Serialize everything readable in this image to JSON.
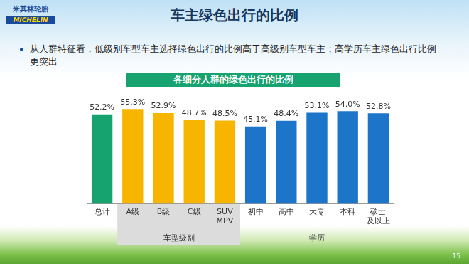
{
  "slide": {
    "title": "车主绿色出行的比例",
    "logo": [
      "米其林轮胎",
      "MICHELIN"
    ],
    "bullet": "从人群特征看，低级别车型车主选择绿色出行的比例高于高级别车型车主；高学历车主绿色出行比例更突出",
    "page": "15"
  },
  "chart_data": {
    "type": "bar",
    "title": "各细分人群的绿色出行的比例",
    "categories": [
      "总计",
      "A级",
      "B级",
      "C级",
      "SUV\nMPV",
      "初中",
      "高中",
      "大专",
      "本科",
      "硕士\n及以上"
    ],
    "values": [
      52.2,
      55.3,
      52.9,
      48.7,
      48.5,
      45.1,
      48.4,
      53.1,
      54.0,
      52.8
    ],
    "value_labels": [
      "52.2%",
      "55.3%",
      "52.9%",
      "48.7%",
      "48.5%",
      "45.1%",
      "48.4%",
      "53.1%",
      "54.0%",
      "52.8%"
    ],
    "colors": [
      "#16a36f",
      "#f7b500",
      "#f7b500",
      "#f7b500",
      "#f7b500",
      "#1c75c9",
      "#1c75c9",
      "#1c75c9",
      "#1c75c9",
      "#1c75c9"
    ],
    "groups": [
      {
        "label": "车型级别",
        "categories": [
          "A级",
          "B级",
          "C级",
          "SUV\nMPV"
        ]
      },
      {
        "label": "学历",
        "categories": [
          "初中",
          "高中",
          "大专",
          "本科",
          "硕士\n及以上"
        ]
      }
    ],
    "ylim": [
      0,
      60
    ],
    "grid": false,
    "data_labels": true,
    "tick_labels": "x"
  }
}
